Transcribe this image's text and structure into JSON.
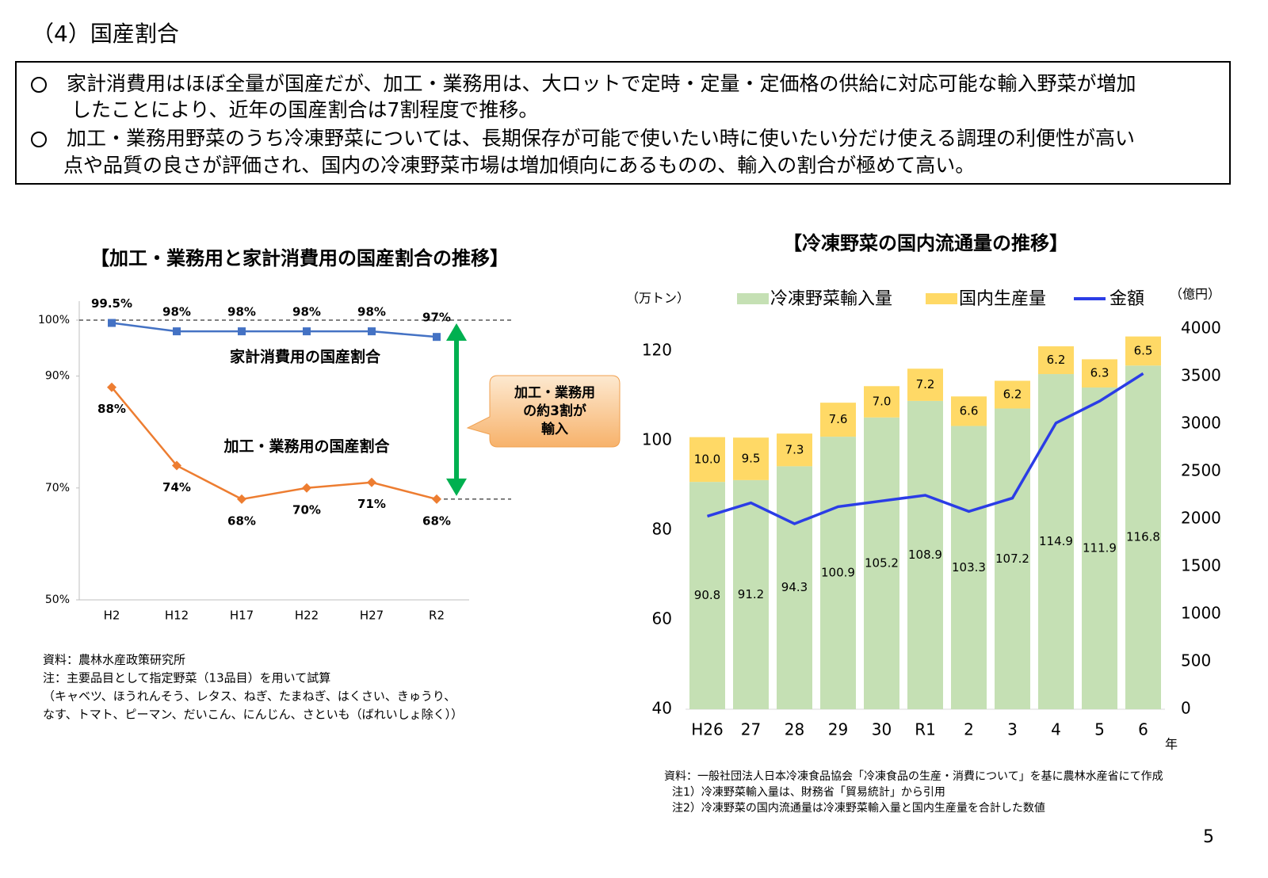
{
  "header": {
    "title": "（4）国産割合"
  },
  "bullets": [
    [
      "家計消費用はほぼ全量が国産だが、加工・業務用は、大ロットで定時・定量・定価格の供給に対応可能な輸入野菜が増加",
      "したことにより、近年の国産割合は7割程度で推移。"
    ],
    [
      "加工・業務用野菜のうち冷凍野菜については、長期保存が可能で使いたい時に使いたい分だけ使える調理の利便性が高い",
      "点や品質の良さが評価され、国内の冷凍野菜市場は増加傾向にあるものの、輸入の割合が極めて高い。"
    ]
  ],
  "chart_data": [
    {
      "type": "line",
      "title": "【加工・業務用と家計消費用の国産割合の推移】",
      "categories": [
        "H2",
        "H12",
        "H17",
        "H22",
        "H27",
        "R2"
      ],
      "series": [
        {
          "name": "家計消費用の国産割合",
          "color": "#4472c4",
          "label_color": "#4472c4",
          "marker": "square",
          "values": [
            99.5,
            98,
            98,
            98,
            98,
            97
          ],
          "value_labels": [
            "99.5%",
            "98%",
            "98%",
            "98%",
            "98%",
            "97%"
          ],
          "value_label_color": "#333333"
        },
        {
          "name": "加工・業務用の国産割合",
          "color": "#ed7d31",
          "label_color": "#ff0000",
          "marker": "diamond",
          "values": [
            88,
            74,
            68,
            70,
            71,
            68
          ],
          "value_labels": [
            "88%",
            "74%",
            "68%",
            "70%",
            "71%",
            "68%"
          ],
          "value_label_color": "#ff0000"
        }
      ],
      "ylim": [
        50,
        100
      ],
      "yticks": [
        {
          "value": 100,
          "label": "100%"
        },
        {
          "value": 90,
          "label": "90%"
        },
        {
          "value": 70,
          "label": "70%"
        },
        {
          "value": 50,
          "label": "50%"
        }
      ],
      "grid": false,
      "annotation": [
        "加工・業務用",
        "の約3割が",
        "輸入"
      ],
      "notes": [
        "資料：農林水産政策研究所",
        "注：主要品目として指定野菜（13品目）を用いて試算",
        "（キャベツ、ほうれんそう、レタス、ねぎ、たまねぎ、はくさい、きゅうり、",
        "なす、トマト、ピーマン、だいこん、にんじん、さといも（ばれいしょ除く））"
      ]
    },
    {
      "type": "bar",
      "stacked": true,
      "title": "【冷凍野菜の国内流通量の推移】",
      "y_label": "（万トン）",
      "y2_label": "（億円）",
      "x_label": "年",
      "categories": [
        "H26",
        "27",
        "28",
        "29",
        "30",
        "R1",
        "2",
        "3",
        "4",
        "5",
        "6"
      ],
      "series": [
        {
          "name": "冷凍野菜輸入量",
          "color": "#c5e0b4",
          "values": [
            90.8,
            91.2,
            94.3,
            100.9,
            105.2,
            108.9,
            103.3,
            107.2,
            114.9,
            111.9,
            116.8
          ]
        },
        {
          "name": "国内生産量",
          "color": "#ffd966",
          "values": [
            10.0,
            9.5,
            7.3,
            7.6,
            7.0,
            7.2,
            6.6,
            6.2,
            6.2,
            6.3,
            6.5
          ],
          "value_labels": [
            "10.0",
            "9.5",
            "7.3",
            "7.6",
            "7.0",
            "7.2",
            "6.6",
            "6.2",
            "6.2",
            "6.3",
            "6.5"
          ]
        },
        {
          "name": "金額",
          "type": "line",
          "axis": "y2",
          "color": "#2b3de6",
          "values": [
            2030,
            2170,
            1950,
            2130,
            2190,
            2250,
            2080,
            2220,
            3010,
            3240,
            3530
          ]
        }
      ],
      "ylim": [
        40,
        125
      ],
      "yticks": [
        40,
        60,
        80,
        100,
        120
      ],
      "y2lim": [
        0,
        4000
      ],
      "y2ticks": [
        0,
        500,
        1000,
        1500,
        2000,
        2500,
        3000,
        3500,
        4000
      ],
      "grid": false,
      "notes": [
        "資料：一般社団法人日本冷凍食品協会「冷凍食品の生産・消費について」を基に農林水産省にて作成",
        "注1）冷凍野菜輸入量は、財務省「貿易統計」から引用",
        "注2）冷凍野菜の国内流通量は冷凍野菜輸入量と国内生産量を合計した数値"
      ]
    }
  ],
  "page_number": "5"
}
